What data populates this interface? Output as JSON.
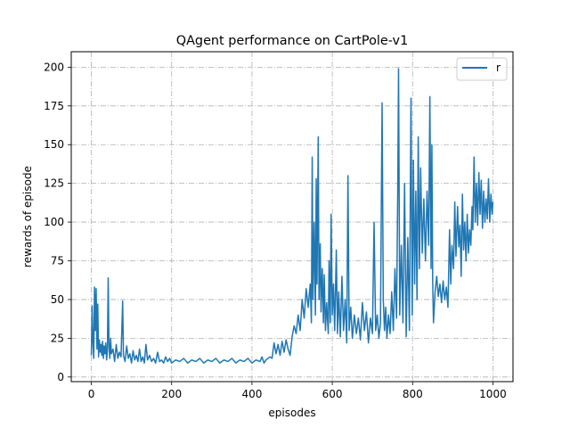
{
  "chart_data": {
    "type": "line",
    "title": "QAgent performance on CartPole-v1",
    "xlabel": "episodes",
    "ylabel": "rewards of episode",
    "xlim": [
      -50,
      1050
    ],
    "ylim": [
      -3,
      210
    ],
    "xticks": [
      0,
      200,
      400,
      600,
      800,
      1000
    ],
    "yticks": [
      0,
      25,
      50,
      75,
      100,
      125,
      150,
      175,
      200
    ],
    "grid": true,
    "grid_style": "dash-dot",
    "legend_position": "top-right",
    "colors": {
      "series": "#1f77b4",
      "grid": "#b0b0b0",
      "axes": "#000000"
    },
    "series": [
      {
        "name": "r",
        "points": [
          [
            0,
            14
          ],
          [
            2,
            46
          ],
          [
            4,
            22
          ],
          [
            6,
            12
          ],
          [
            8,
            58
          ],
          [
            10,
            30
          ],
          [
            12,
            57
          ],
          [
            14,
            18
          ],
          [
            16,
            47
          ],
          [
            18,
            13
          ],
          [
            20,
            24
          ],
          [
            22,
            16
          ],
          [
            24,
            21
          ],
          [
            26,
            14
          ],
          [
            28,
            23
          ],
          [
            30,
            12
          ],
          [
            32,
            20
          ],
          [
            34,
            15
          ],
          [
            36,
            22
          ],
          [
            38,
            11
          ],
          [
            40,
            17
          ],
          [
            42,
            64
          ],
          [
            44,
            20
          ],
          [
            46,
            12
          ],
          [
            48,
            25
          ],
          [
            50,
            15
          ],
          [
            54,
            18
          ],
          [
            58,
            10
          ],
          [
            62,
            21
          ],
          [
            66,
            12
          ],
          [
            70,
            16
          ],
          [
            74,
            13
          ],
          [
            78,
            49
          ],
          [
            80,
            14
          ],
          [
            84,
            10
          ],
          [
            88,
            20
          ],
          [
            92,
            12
          ],
          [
            96,
            15
          ],
          [
            100,
            9
          ],
          [
            104,
            17
          ],
          [
            108,
            11
          ],
          [
            112,
            14
          ],
          [
            116,
            10
          ],
          [
            120,
            18
          ],
          [
            124,
            10
          ],
          [
            128,
            13
          ],
          [
            132,
            9
          ],
          [
            136,
            21
          ],
          [
            140,
            11
          ],
          [
            145,
            14
          ],
          [
            150,
            10
          ],
          [
            155,
            12
          ],
          [
            160,
            9
          ],
          [
            165,
            16
          ],
          [
            170,
            10
          ],
          [
            175,
            11
          ],
          [
            180,
            9
          ],
          [
            185,
            13
          ],
          [
            190,
            10
          ],
          [
            195,
            12
          ],
          [
            200,
            9
          ],
          [
            210,
            11
          ],
          [
            220,
            10
          ],
          [
            230,
            12
          ],
          [
            240,
            9
          ],
          [
            250,
            11
          ],
          [
            260,
            10
          ],
          [
            270,
            12
          ],
          [
            280,
            9
          ],
          [
            290,
            11
          ],
          [
            300,
            10
          ],
          [
            310,
            12
          ],
          [
            320,
            9
          ],
          [
            330,
            11
          ],
          [
            340,
            10
          ],
          [
            350,
            12
          ],
          [
            360,
            9
          ],
          [
            370,
            11
          ],
          [
            380,
            10
          ],
          [
            390,
            12
          ],
          [
            400,
            9
          ],
          [
            410,
            11
          ],
          [
            420,
            10
          ],
          [
            425,
            13
          ],
          [
            430,
            9
          ],
          [
            435,
            11
          ],
          [
            440,
            12
          ],
          [
            445,
            13
          ],
          [
            450,
            12
          ],
          [
            455,
            22
          ],
          [
            460,
            15
          ],
          [
            465,
            21
          ],
          [
            470,
            14
          ],
          [
            475,
            23
          ],
          [
            480,
            16
          ],
          [
            485,
            24
          ],
          [
            490,
            18
          ],
          [
            495,
            14
          ],
          [
            500,
            26
          ],
          [
            505,
            33
          ],
          [
            510,
            28
          ],
          [
            515,
            40
          ],
          [
            520,
            30
          ],
          [
            525,
            50
          ],
          [
            530,
            38
          ],
          [
            535,
            57
          ],
          [
            540,
            45
          ],
          [
            545,
            60
          ],
          [
            548,
            35
          ],
          [
            550,
            142
          ],
          [
            552,
            50
          ],
          [
            555,
            100
          ],
          [
            558,
            40
          ],
          [
            560,
            128
          ],
          [
            562,
            60
          ],
          [
            565,
            155
          ],
          [
            567,
            50
          ],
          [
            570,
            86
          ],
          [
            572,
            42
          ],
          [
            575,
            70
          ],
          [
            578,
            35
          ],
          [
            580,
            66
          ],
          [
            583,
            30
          ],
          [
            586,
            48
          ],
          [
            590,
            28
          ],
          [
            592,
            75
          ],
          [
            595,
            35
          ],
          [
            597,
            105
          ],
          [
            600,
            40
          ],
          [
            603,
            60
          ],
          [
            606,
            30
          ],
          [
            610,
            82
          ],
          [
            613,
            28
          ],
          [
            616,
            55
          ],
          [
            620,
            26
          ],
          [
            624,
            65
          ],
          [
            628,
            30
          ],
          [
            632,
            50
          ],
          [
            636,
            22
          ],
          [
            639,
            130
          ],
          [
            642,
            30
          ],
          [
            646,
            45
          ],
          [
            650,
            25
          ],
          [
            655,
            40
          ],
          [
            660,
            28
          ],
          [
            665,
            38
          ],
          [
            670,
            24
          ],
          [
            675,
            48
          ],
          [
            680,
            30
          ],
          [
            685,
            42
          ],
          [
            690,
            22
          ],
          [
            695,
            38
          ],
          [
            700,
            28
          ],
          [
            704,
            100
          ],
          [
            708,
            30
          ],
          [
            712,
            40
          ],
          [
            716,
            25
          ],
          [
            720,
            35
          ],
          [
            724,
            177
          ],
          [
            727,
            50
          ],
          [
            730,
            30
          ],
          [
            733,
            45
          ],
          [
            736,
            25
          ],
          [
            740,
            40
          ],
          [
            744,
            28
          ],
          [
            748,
            55
          ],
          [
            752,
            30
          ],
          [
            756,
            70
          ],
          [
            760,
            38
          ],
          [
            763,
            120
          ],
          [
            765,
            199
          ],
          [
            768,
            40
          ],
          [
            772,
            85
          ],
          [
            776,
            35
          ],
          [
            780,
            125
          ],
          [
            784,
            26
          ],
          [
            788,
            90
          ],
          [
            792,
            30
          ],
          [
            796,
            180
          ],
          [
            799,
            40
          ],
          [
            802,
            140
          ],
          [
            805,
            60
          ],
          [
            808,
            120
          ],
          [
            811,
            50
          ],
          [
            814,
            155
          ],
          [
            817,
            70
          ],
          [
            820,
            135
          ],
          [
            824,
            80
          ],
          [
            828,
            115
          ],
          [
            832,
            75
          ],
          [
            836,
            120
          ],
          [
            840,
            85
          ],
          [
            843,
            181
          ],
          [
            846,
            70
          ],
          [
            848,
            150
          ],
          [
            850,
            62
          ],
          [
            852,
            35
          ],
          [
            856,
            55
          ],
          [
            860,
            65
          ],
          [
            864,
            52
          ],
          [
            868,
            60
          ],
          [
            872,
            48
          ],
          [
            876,
            62
          ],
          [
            880,
            50
          ],
          [
            884,
            58
          ],
          [
            888,
            45
          ],
          [
            892,
            95
          ],
          [
            895,
            60
          ],
          [
            898,
            85
          ],
          [
            902,
            70
          ],
          [
            905,
            113
          ],
          [
            908,
            78
          ],
          [
            912,
            110
          ],
          [
            915,
            84
          ],
          [
            918,
            98
          ],
          [
            921,
            65
          ],
          [
            924,
            118
          ],
          [
            927,
            82
          ],
          [
            930,
            100
          ],
          [
            933,
            75
          ],
          [
            936,
            105
          ],
          [
            939,
            80
          ],
          [
            942,
            95
          ],
          [
            945,
            85
          ],
          [
            948,
            110
          ],
          [
            950,
            95
          ],
          [
            953,
            142
          ],
          [
            956,
            100
          ],
          [
            959,
            125
          ],
          [
            962,
            98
          ],
          [
            965,
            132
          ],
          [
            968,
            105
          ],
          [
            971,
            127
          ],
          [
            974,
            96
          ],
          [
            977,
            120
          ],
          [
            980,
            100
          ],
          [
            983,
            115
          ],
          [
            986,
            102
          ],
          [
            989,
            128
          ],
          [
            992,
            100
          ],
          [
            995,
            118
          ],
          [
            998,
            105
          ],
          [
            1000,
            113
          ]
        ]
      }
    ]
  }
}
